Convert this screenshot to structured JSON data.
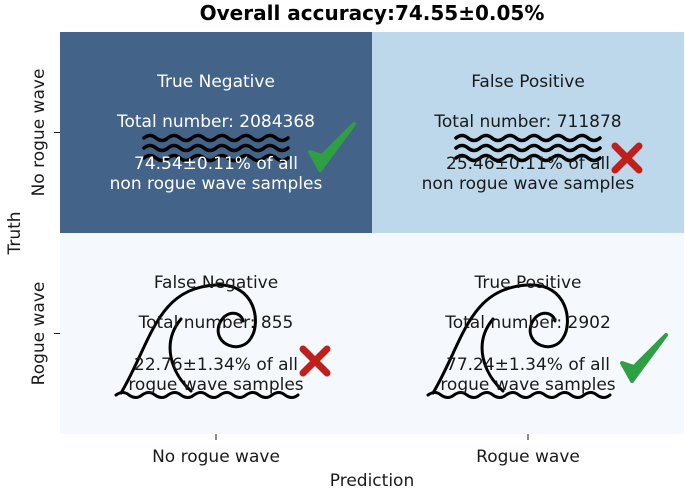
{
  "chart_data": {
    "type": "heatmap",
    "title": "Overall accuracy:74.55±0.05%",
    "xlabel": "Prediction",
    "ylabel": "Truth",
    "x_categories": [
      "No rogue wave",
      "Rogue wave"
    ],
    "y_categories": [
      "No rogue wave",
      "Rogue wave"
    ],
    "cells": [
      {
        "row": 0,
        "col": 0,
        "label": "True Negative",
        "total": "Total number: 2084368",
        "pct_line1": "74.54±0.11% of all",
        "pct_line2": "non rogue wave samples",
        "color": "#436389",
        "text_color": "#ffffff",
        "icon": "wavy-lines-icon",
        "mark": "check-icon"
      },
      {
        "row": 0,
        "col": 1,
        "label": "False Positive",
        "total": "Total number: 711878",
        "pct_line1": "25.46±0.11% of all",
        "pct_line2": "non rogue wave samples",
        "color": "#bcd8ea",
        "text_color": "#1a1a1a",
        "icon": "wavy-lines-icon",
        "mark": "cross-icon"
      },
      {
        "row": 1,
        "col": 0,
        "label": "False Negative",
        "total": "Total number: 855",
        "pct_line1": "22.76±1.34% of all",
        "pct_line2": "rogue wave samples",
        "color": "#f5f9fd",
        "text_color": "#1a1a1a",
        "icon": "rogue-wave-icon",
        "mark": "cross-icon"
      },
      {
        "row": 1,
        "col": 1,
        "label": "True Positive",
        "total": "Total number: 2902",
        "pct_line1": "77.24±1.34% of all",
        "pct_line2": "rogue wave samples",
        "color": "#f5f9fd",
        "text_color": "#1a1a1a",
        "icon": "rogue-wave-icon",
        "mark": "check-icon"
      }
    ],
    "colors": {
      "check": "#2ea043",
      "cross": "#c0201c"
    }
  }
}
